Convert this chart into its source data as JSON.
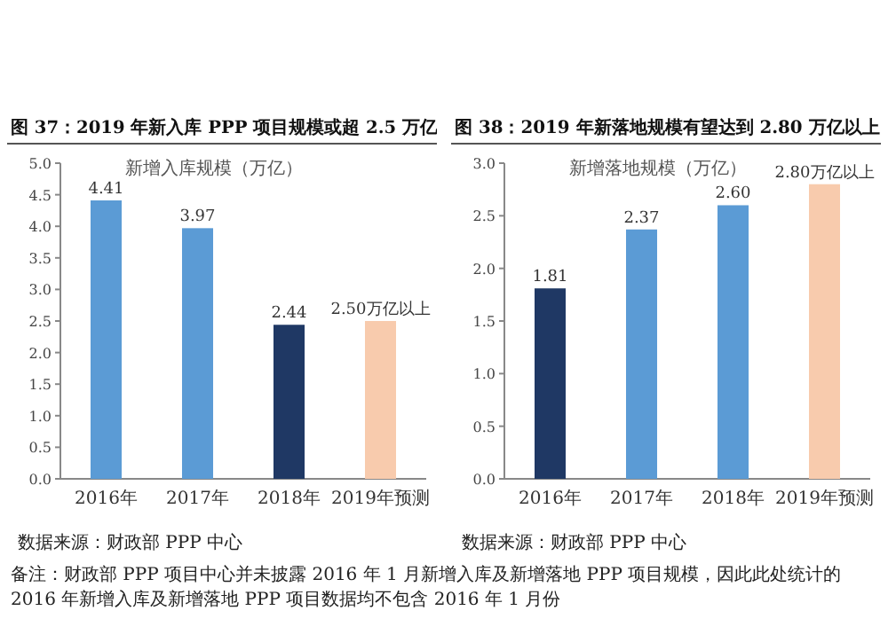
{
  "chart_data": [
    {
      "type": "bar",
      "title": "图 37：2019 年新入库 PPP 项目规模或超 2.5 万亿",
      "categories": [
        "2016年",
        "2017年",
        "2018年",
        "2019年预测"
      ],
      "values": [
        4.41,
        3.97,
        2.44,
        2.5
      ],
      "colors": [
        "#5b9bd5",
        "#5b9bd5",
        "#1f3864",
        "#f8cbad"
      ],
      "value_labels": [
        "4.41",
        "3.97",
        "2.44",
        "2.50万亿以上"
      ],
      "ylim": [
        0,
        5
      ],
      "yticks": [
        {
          "value": 0,
          "label": "0.0"
        },
        {
          "value": 0.5,
          "label": "0.5"
        },
        {
          "value": 1,
          "label": "1.0"
        },
        {
          "value": 1.5,
          "label": "1.5"
        },
        {
          "value": 2,
          "label": "2.0"
        },
        {
          "value": 2.5,
          "label": "2.5"
        },
        {
          "value": 3,
          "label": "3.0"
        },
        {
          "value": 3.5,
          "label": "3.5"
        },
        {
          "value": 4,
          "label": "4.0"
        },
        {
          "value": 4.5,
          "label": "4.5"
        },
        {
          "value": 5,
          "label": "5.0"
        }
      ],
      "annotations": [
        "新增入库规模（万亿）",
        "数据来源：财政部 PPP 中心",
        "备注：财政部 PPP 项目中心并未披露 2016 年 1 月新增入库及新增落地 PPP 项目规模，因此此处统计的 2016 年新增入库及新增落地 PPP 项目数据均不包含 2016 年 1 月份"
      ]
    },
    {
      "type": "bar",
      "title": "图 38：2019 年新落地规模有望达到 2.80 万亿以上",
      "categories": [
        "2016年",
        "2017年",
        "2018年",
        "2019年预测"
      ],
      "values": [
        1.81,
        2.37,
        2.6,
        2.8
      ],
      "colors": [
        "#1f3864",
        "#5b9bd5",
        "#5b9bd5",
        "#f8cbad"
      ],
      "value_labels": [
        "1.81",
        "2.37",
        "2.60",
        "2.80万亿以上"
      ],
      "ylim": [
        0,
        3
      ],
      "yticks": [
        {
          "value": 0,
          "label": "0.0"
        },
        {
          "value": 0.5,
          "label": "0.5"
        },
        {
          "value": 1,
          "label": "1.0"
        },
        {
          "value": 1.5,
          "label": "1.5"
        },
        {
          "value": 2,
          "label": "2.0"
        },
        {
          "value": 2.5,
          "label": "2.5"
        },
        {
          "value": 3,
          "label": "3.0"
        }
      ],
      "annotations": [
        "新增落地规模（万亿）",
        "数据来源：财政部 PPP 中心"
      ]
    }
  ]
}
